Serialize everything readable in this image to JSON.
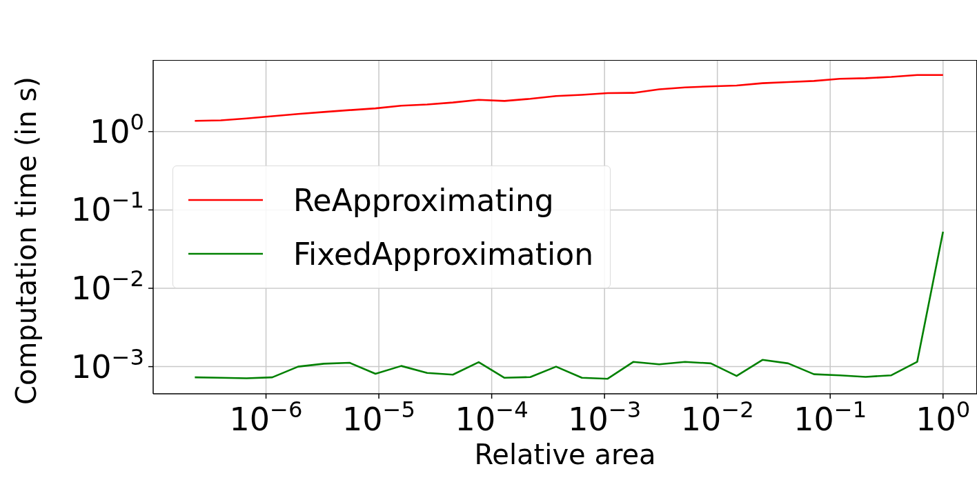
{
  "chart_data": {
    "type": "line",
    "xlabel": "Relative area",
    "ylabel": "Computation time (in s)",
    "x": [
      2.34e-07,
      3.97e-07,
      6.72e-07,
      1.137e-06,
      1.925e-06,
      3.26e-06,
      5.51e-06,
      9.34e-06,
      1.58e-05,
      2.68e-05,
      4.53e-05,
      7.67e-05,
      0.0001298,
      0.00022,
      0.000372,
      0.00063,
      0.001066,
      0.001804,
      0.00305,
      0.00517,
      0.00875,
      0.01481,
      0.0251,
      0.0424,
      0.0718,
      0.1216,
      0.206,
      0.348,
      0.59,
      1
    ],
    "series": [
      {
        "name": "ReApproximating",
        "color": "#ff0000",
        "values": [
          1.37,
          1.39,
          1.47,
          1.57,
          1.68,
          1.78,
          1.88,
          1.98,
          2.14,
          2.22,
          2.35,
          2.54,
          2.46,
          2.62,
          2.84,
          2.95,
          3.1,
          3.12,
          3.46,
          3.66,
          3.78,
          3.87,
          4.15,
          4.29,
          4.43,
          4.72,
          4.8,
          4.99,
          5.28,
          5.28
        ]
      },
      {
        "name": "FixedApproximation",
        "color": "#008000",
        "values": [
          0.00073,
          0.00072,
          0.00071,
          0.00073,
          0.001,
          0.00109,
          0.00112,
          0.00081,
          0.00102,
          0.00083,
          0.00079,
          0.00114,
          0.00072,
          0.000735,
          0.001,
          0.00072,
          0.0007,
          0.00115,
          0.00107,
          0.00115,
          0.0011,
          0.00076,
          0.00122,
          0.0011,
          0.0008,
          0.000775,
          0.00074,
          0.000775,
          0.00115,
          0.0526
        ]
      }
    ],
    "log": "xy",
    "xlim": [
      1e-07,
      2
    ],
    "ylim": [
      0.00045,
      8.2
    ],
    "xticks": [
      {
        "value": 1e-06,
        "label": "10$^{−6}$"
      },
      {
        "value": 1e-05,
        "label": "10$^{−5}$"
      },
      {
        "value": 0.0001,
        "label": "10$^{−4}$"
      },
      {
        "value": 0.001,
        "label": "10$^{−3}$"
      },
      {
        "value": 0.01,
        "label": "10$^{−2}$"
      },
      {
        "value": 0.1,
        "label": "10$^{−1}$"
      },
      {
        "value": 1,
        "label": "10$^{0}$"
      }
    ],
    "yticks": [
      {
        "value": 0.001,
        "label": "10$^{−3}$"
      },
      {
        "value": 0.01,
        "label": "10$^{−2}$"
      },
      {
        "value": 0.1,
        "label": "10$^{−1}$"
      },
      {
        "value": 1,
        "label": "10$^{0}$"
      }
    ],
    "grid": true,
    "legend": "center left",
    "line_style": "solid",
    "marker": "none"
  }
}
